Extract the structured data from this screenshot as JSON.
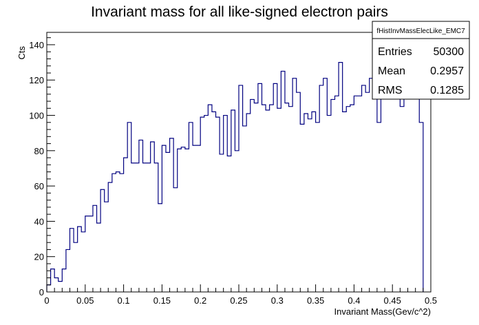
{
  "chart_data": {
    "type": "histogram",
    "title": "Invariant mass for all like-signed electron pairs",
    "xlabel": "Invariant Mass(Gev/c^2)",
    "ylabel": "Cts",
    "xlim": [
      0,
      0.5
    ],
    "ylim": [
      0,
      147
    ],
    "x_ticks": [
      "0",
      "0.05",
      "0.1",
      "0.15",
      "0.2",
      "0.25",
      "0.3",
      "0.35",
      "0.4",
      "0.45",
      "0.5"
    ],
    "y_ticks": [
      "0",
      "20",
      "40",
      "60",
      "80",
      "100",
      "120",
      "140"
    ],
    "bin_width": 0.005,
    "values": [
      4,
      13,
      8,
      6,
      13,
      24,
      36,
      28,
      37,
      34,
      43,
      43,
      49,
      39,
      58,
      51,
      62,
      67,
      68,
      67,
      76,
      96,
      73,
      73,
      86,
      73,
      73,
      85,
      73,
      50,
      83,
      79,
      87,
      59,
      81,
      82,
      81,
      96,
      83,
      83,
      99,
      100,
      106,
      102,
      99,
      78,
      100,
      77,
      103,
      80,
      117,
      94,
      101,
      109,
      107,
      118,
      106,
      103,
      106,
      118,
      104,
      125,
      107,
      105,
      121,
      113,
      95,
      101,
      98,
      102,
      96,
      117,
      121,
      100,
      109,
      111,
      130,
      102,
      105,
      106,
      111,
      111,
      117,
      113,
      121,
      119,
      96,
      120,
      114,
      121,
      126,
      119,
      105,
      128,
      113,
      116,
      110,
      96
    ],
    "line_color": "#000080",
    "grid": false,
    "stats_box": {
      "name": "fHistInvMassElecLike_EMC7",
      "rows": [
        {
          "label": "Entries",
          "value": "50300"
        },
        {
          "label": "Mean",
          "value": "0.2957"
        },
        {
          "label": "RMS",
          "value": "0.1285"
        }
      ],
      "placement": "top-right"
    }
  }
}
